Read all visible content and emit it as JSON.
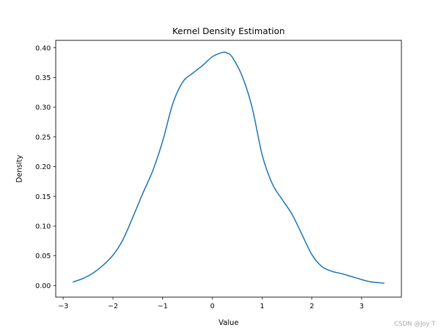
{
  "chart_data": {
    "type": "line",
    "title": "Kernel Density Estimation",
    "xlabel": "Value",
    "ylabel": "Density",
    "xlim": [
      -3.15,
      3.8
    ],
    "ylim": [
      -0.0195,
      0.4125
    ],
    "xticks": [
      -3,
      -2,
      -1,
      0,
      1,
      2,
      3
    ],
    "xtick_labels": [
      "−3",
      "−2",
      "−1",
      "0",
      "1",
      "2",
      "3"
    ],
    "yticks": [
      0.0,
      0.05,
      0.1,
      0.15,
      0.2,
      0.25,
      0.3,
      0.35,
      0.4
    ],
    "ytick_labels": [
      "0.00",
      "0.05",
      "0.10",
      "0.15",
      "0.20",
      "0.25",
      "0.30",
      "0.35",
      "0.40"
    ],
    "grid": false,
    "color": "#1f77b4",
    "series": [
      {
        "x": [
          -2.8,
          -2.6,
          -2.4,
          -2.2,
          -2.0,
          -1.8,
          -1.6,
          -1.4,
          -1.2,
          -1.0,
          -0.8,
          -0.6,
          -0.4,
          -0.2,
          0.0,
          0.2,
          0.3,
          0.4,
          0.6,
          0.8,
          1.0,
          1.2,
          1.4,
          1.6,
          1.8,
          2.0,
          2.2,
          2.4,
          2.6,
          2.8,
          3.0,
          3.2,
          3.45
        ],
        "values": [
          0.006,
          0.012,
          0.021,
          0.034,
          0.051,
          0.077,
          0.115,
          0.155,
          0.193,
          0.243,
          0.305,
          0.342,
          0.357,
          0.37,
          0.385,
          0.392,
          0.391,
          0.384,
          0.352,
          0.299,
          0.22,
          0.172,
          0.145,
          0.12,
          0.086,
          0.052,
          0.032,
          0.024,
          0.02,
          0.015,
          0.01,
          0.006,
          0.004
        ]
      }
    ]
  },
  "watermark": "CSDN @Joy T"
}
